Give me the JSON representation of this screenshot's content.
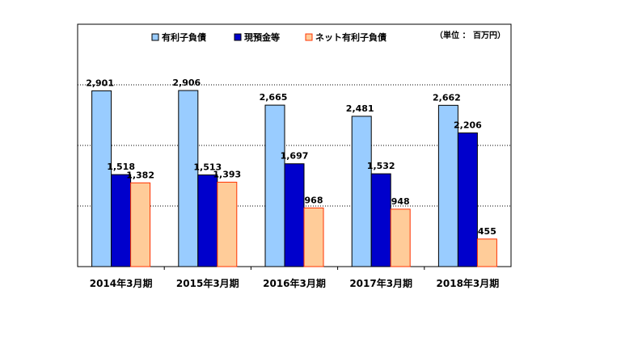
{
  "chart_data": {
    "type": "bar",
    "title": "",
    "unit_label": "（単位 ： 百万円）",
    "categories": [
      "2014年3月期",
      "2015年3月期",
      "2016年3月期",
      "2017年3月期",
      "2018年3月期"
    ],
    "series": [
      {
        "name": "有利子負債",
        "values": [
          2901,
          2906,
          2665,
          2481,
          2662
        ],
        "labels": [
          "2,901",
          "2,906",
          "2,665",
          "2,481",
          "2,662"
        ],
        "color": "#99CCFF",
        "stroke": "#000000"
      },
      {
        "name": "現預金等",
        "values": [
          1518,
          1513,
          1697,
          1532,
          2206
        ],
        "labels": [
          "1,518",
          "1,513",
          "1,697",
          "1,532",
          "2,206"
        ],
        "color": "#0000CC",
        "stroke": "#000000"
      },
      {
        "name": "ネット有利子負債",
        "values": [
          1382,
          1393,
          968,
          948,
          455
        ],
        "labels": [
          "1,382",
          "1,393",
          "968",
          "948",
          "455"
        ],
        "color": "#FFCC99",
        "stroke": "#FF3300"
      }
    ],
    "ylim": [
      0,
      4000
    ],
    "grid": true,
    "legend": "top"
  }
}
